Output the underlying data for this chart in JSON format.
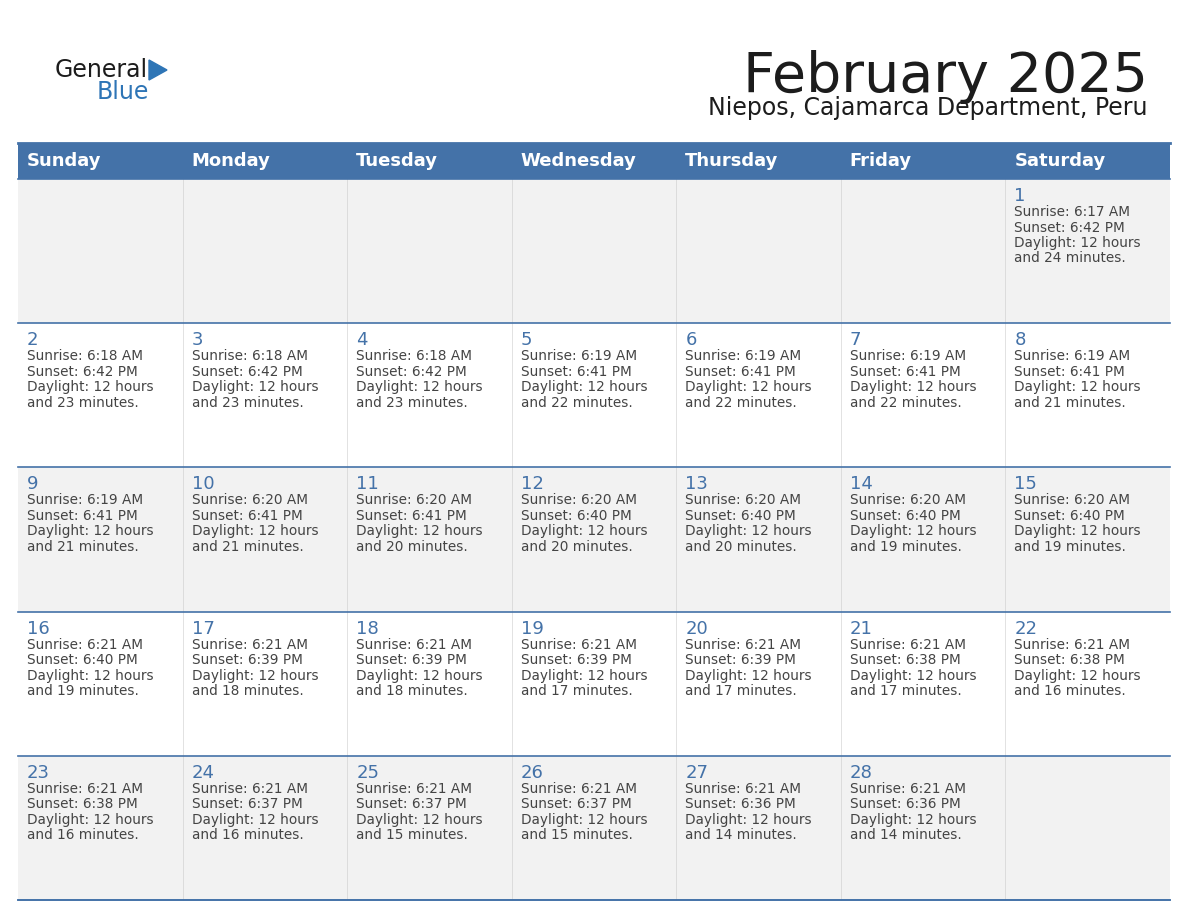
{
  "title": "February 2025",
  "subtitle": "Niepos, Cajamarca Department, Peru",
  "days_of_week": [
    "Sunday",
    "Monday",
    "Tuesday",
    "Wednesday",
    "Thursday",
    "Friday",
    "Saturday"
  ],
  "header_bg": "#4472a8",
  "header_text": "#ffffff",
  "cell_bg_odd": "#f2f2f2",
  "cell_bg_even": "#ffffff",
  "day_number_color": "#4472a8",
  "text_color": "#444444",
  "line_color": "#4472a8",
  "title_fontsize": 40,
  "subtitle_fontsize": 17,
  "header_fontsize": 13,
  "day_num_fontsize": 13,
  "cell_text_fontsize": 9.8,
  "logo_general_fontsize": 17,
  "logo_blue_fontsize": 17,
  "calendar_data": [
    [
      null,
      null,
      null,
      null,
      null,
      null,
      {
        "day": 1,
        "sunrise": "6:17 AM",
        "sunset": "6:42 PM",
        "daylight": "12 hours and 24 minutes."
      }
    ],
    [
      {
        "day": 2,
        "sunrise": "6:18 AM",
        "sunset": "6:42 PM",
        "daylight": "12 hours and 23 minutes."
      },
      {
        "day": 3,
        "sunrise": "6:18 AM",
        "sunset": "6:42 PM",
        "daylight": "12 hours and 23 minutes."
      },
      {
        "day": 4,
        "sunrise": "6:18 AM",
        "sunset": "6:42 PM",
        "daylight": "12 hours and 23 minutes."
      },
      {
        "day": 5,
        "sunrise": "6:19 AM",
        "sunset": "6:41 PM",
        "daylight": "12 hours and 22 minutes."
      },
      {
        "day": 6,
        "sunrise": "6:19 AM",
        "sunset": "6:41 PM",
        "daylight": "12 hours and 22 minutes."
      },
      {
        "day": 7,
        "sunrise": "6:19 AM",
        "sunset": "6:41 PM",
        "daylight": "12 hours and 22 minutes."
      },
      {
        "day": 8,
        "sunrise": "6:19 AM",
        "sunset": "6:41 PM",
        "daylight": "12 hours and 21 minutes."
      }
    ],
    [
      {
        "day": 9,
        "sunrise": "6:19 AM",
        "sunset": "6:41 PM",
        "daylight": "12 hours and 21 minutes."
      },
      {
        "day": 10,
        "sunrise": "6:20 AM",
        "sunset": "6:41 PM",
        "daylight": "12 hours and 21 minutes."
      },
      {
        "day": 11,
        "sunrise": "6:20 AM",
        "sunset": "6:41 PM",
        "daylight": "12 hours and 20 minutes."
      },
      {
        "day": 12,
        "sunrise": "6:20 AM",
        "sunset": "6:40 PM",
        "daylight": "12 hours and 20 minutes."
      },
      {
        "day": 13,
        "sunrise": "6:20 AM",
        "sunset": "6:40 PM",
        "daylight": "12 hours and 20 minutes."
      },
      {
        "day": 14,
        "sunrise": "6:20 AM",
        "sunset": "6:40 PM",
        "daylight": "12 hours and 19 minutes."
      },
      {
        "day": 15,
        "sunrise": "6:20 AM",
        "sunset": "6:40 PM",
        "daylight": "12 hours and 19 minutes."
      }
    ],
    [
      {
        "day": 16,
        "sunrise": "6:21 AM",
        "sunset": "6:40 PM",
        "daylight": "12 hours and 19 minutes."
      },
      {
        "day": 17,
        "sunrise": "6:21 AM",
        "sunset": "6:39 PM",
        "daylight": "12 hours and 18 minutes."
      },
      {
        "day": 18,
        "sunrise": "6:21 AM",
        "sunset": "6:39 PM",
        "daylight": "12 hours and 18 minutes."
      },
      {
        "day": 19,
        "sunrise": "6:21 AM",
        "sunset": "6:39 PM",
        "daylight": "12 hours and 17 minutes."
      },
      {
        "day": 20,
        "sunrise": "6:21 AM",
        "sunset": "6:39 PM",
        "daylight": "12 hours and 17 minutes."
      },
      {
        "day": 21,
        "sunrise": "6:21 AM",
        "sunset": "6:38 PM",
        "daylight": "12 hours and 17 minutes."
      },
      {
        "day": 22,
        "sunrise": "6:21 AM",
        "sunset": "6:38 PM",
        "daylight": "12 hours and 16 minutes."
      }
    ],
    [
      {
        "day": 23,
        "sunrise": "6:21 AM",
        "sunset": "6:38 PM",
        "daylight": "12 hours and 16 minutes."
      },
      {
        "day": 24,
        "sunrise": "6:21 AM",
        "sunset": "6:37 PM",
        "daylight": "12 hours and 16 minutes."
      },
      {
        "day": 25,
        "sunrise": "6:21 AM",
        "sunset": "6:37 PM",
        "daylight": "12 hours and 15 minutes."
      },
      {
        "day": 26,
        "sunrise": "6:21 AM",
        "sunset": "6:37 PM",
        "daylight": "12 hours and 15 minutes."
      },
      {
        "day": 27,
        "sunrise": "6:21 AM",
        "sunset": "6:36 PM",
        "daylight": "12 hours and 14 minutes."
      },
      {
        "day": 28,
        "sunrise": "6:21 AM",
        "sunset": "6:36 PM",
        "daylight": "12 hours and 14 minutes."
      },
      null
    ]
  ]
}
